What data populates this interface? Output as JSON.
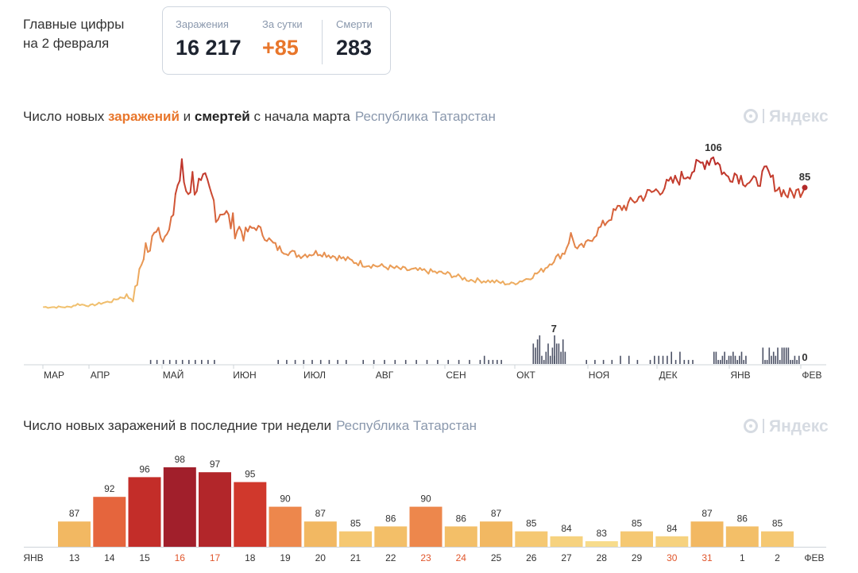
{
  "header": {
    "title_line1": "Главные цифры",
    "title_line2": "на 2 февраля",
    "stats": [
      {
        "label": "Заражения",
        "value": "16 217"
      },
      {
        "label": "За сутки",
        "value": "+85"
      },
      {
        "label": "Смерти",
        "value": "283"
      }
    ]
  },
  "section1": {
    "title_p1": "Число новых ",
    "title_hl1": "заражений",
    "title_p2": " и ",
    "title_hl2": "смертей",
    "title_p3": " с начала марта",
    "region": "Республика Татарстан",
    "logo_text": "Яндекс"
  },
  "section2": {
    "title": "Число новых заражений в последние три недели",
    "region": "Республика Татарстан",
    "logo_text": "Яндекс"
  },
  "colors": {
    "orange_text": "#e8762b",
    "grey_text": "#8a98ad",
    "death_bars": "#4c5266",
    "scale": [
      "#f7dc8c",
      "#f4c36b",
      "#f0b15c",
      "#ec7c48",
      "#e05536",
      "#cc3129",
      "#a11f2b"
    ]
  },
  "chart_data": [
    {
      "type": "line",
      "series_name": "заражений",
      "x_labels": [
        "МАР",
        "АПР",
        "МАЙ",
        "ИЮН",
        "ИЮЛ",
        "АВГ",
        "СЕН",
        "ОКТ",
        "НОЯ",
        "ДЕК",
        "ЯНВ",
        "ФЕВ"
      ],
      "peak_label": "106",
      "last_label": "85",
      "ylim": [
        0,
        106
      ],
      "keypoints": [
        [
          0,
          2
        ],
        [
          12,
          2
        ],
        [
          16,
          4
        ],
        [
          22,
          3
        ],
        [
          28,
          5
        ],
        [
          32,
          6
        ],
        [
          38,
          10
        ],
        [
          42,
          8
        ],
        [
          45,
          25
        ],
        [
          48,
          45
        ],
        [
          50,
          38
        ],
        [
          52,
          60
        ],
        [
          55,
          57
        ],
        [
          58,
          50
        ],
        [
          60,
          57
        ],
        [
          62,
          82
        ],
        [
          65,
          96
        ],
        [
          67,
          84
        ],
        [
          70,
          90
        ],
        [
          72,
          88
        ],
        [
          74,
          82
        ],
        [
          76,
          85
        ],
        [
          78,
          80
        ],
        [
          80,
          75
        ],
        [
          82,
          66
        ],
        [
          84,
          72
        ],
        [
          87,
          62
        ],
        [
          90,
          58
        ],
        [
          95,
          54
        ],
        [
          100,
          58
        ],
        [
          105,
          50
        ],
        [
          110,
          43
        ],
        [
          120,
          38
        ],
        [
          130,
          40
        ],
        [
          140,
          36
        ],
        [
          150,
          32
        ],
        [
          160,
          30
        ],
        [
          170,
          28
        ],
        [
          180,
          27
        ],
        [
          190,
          25
        ],
        [
          200,
          21
        ],
        [
          210,
          20
        ],
        [
          220,
          18
        ],
        [
          228,
          22
        ],
        [
          235,
          28
        ],
        [
          240,
          35
        ],
        [
          245,
          40
        ],
        [
          248,
          52
        ],
        [
          251,
          42
        ],
        [
          255,
          45
        ],
        [
          260,
          54
        ],
        [
          265,
          62
        ],
        [
          270,
          70
        ],
        [
          275,
          73
        ],
        [
          280,
          78
        ],
        [
          285,
          81
        ],
        [
          290,
          84
        ],
        [
          295,
          88
        ],
        [
          300,
          92
        ],
        [
          305,
          97
        ],
        [
          308,
          100
        ],
        [
          312,
          104
        ],
        [
          315,
          106
        ],
        [
          318,
          100
        ],
        [
          321,
          92
        ],
        [
          325,
          95
        ],
        [
          330,
          90
        ],
        [
          335,
          88
        ],
        [
          340,
          96
        ],
        [
          345,
          85
        ],
        [
          350,
          80
        ],
        [
          355,
          82
        ],
        [
          358,
          85
        ]
      ]
    },
    {
      "type": "bar",
      "series_name": "смертей",
      "peak_label": "7",
      "last_label": "0",
      "ylim": [
        0,
        7
      ],
      "clusters": [
        {
          "days": [
            50,
            80
          ],
          "step": 3,
          "max": 1
        },
        {
          "days": [
            110,
            145
          ],
          "step": 4,
          "max": 1
        },
        {
          "days": [
            150,
            200
          ],
          "step": 5,
          "max": 1
        },
        {
          "days": [
            205,
            215
          ],
          "step": 2,
          "max": 3
        },
        {
          "days": [
            230,
            245
          ],
          "step": 1,
          "max": 7
        },
        {
          "days": [
            255,
            280
          ],
          "step": 4,
          "max": 2
        },
        {
          "days": [
            285,
            305
          ],
          "step": 2,
          "max": 3
        },
        {
          "days": [
            315,
            330
          ],
          "step": 1,
          "max": 3
        },
        {
          "days": [
            338,
            355
          ],
          "step": 1,
          "max": 5
        }
      ]
    },
    {
      "type": "bar",
      "series_name": "Число новых заражений в последние три недели",
      "month_start": "ЯНВ",
      "month_end": "ФЕВ",
      "categories": [
        "13",
        "14",
        "15",
        "16",
        "17",
        "18",
        "19",
        "20",
        "21",
        "22",
        "23",
        "24",
        "25",
        "26",
        "27",
        "28",
        "29",
        "30",
        "31",
        "1",
        "2"
      ],
      "weekend": [
        false,
        false,
        false,
        true,
        true,
        false,
        false,
        false,
        false,
        false,
        true,
        true,
        false,
        false,
        false,
        false,
        false,
        true,
        true,
        false,
        false
      ],
      "values": [
        87,
        92,
        96,
        98,
        97,
        95,
        90,
        87,
        85,
        86,
        90,
        86,
        87,
        85,
        84,
        83,
        85,
        84,
        87,
        86,
        85
      ],
      "ylim": [
        0,
        98
      ]
    }
  ]
}
